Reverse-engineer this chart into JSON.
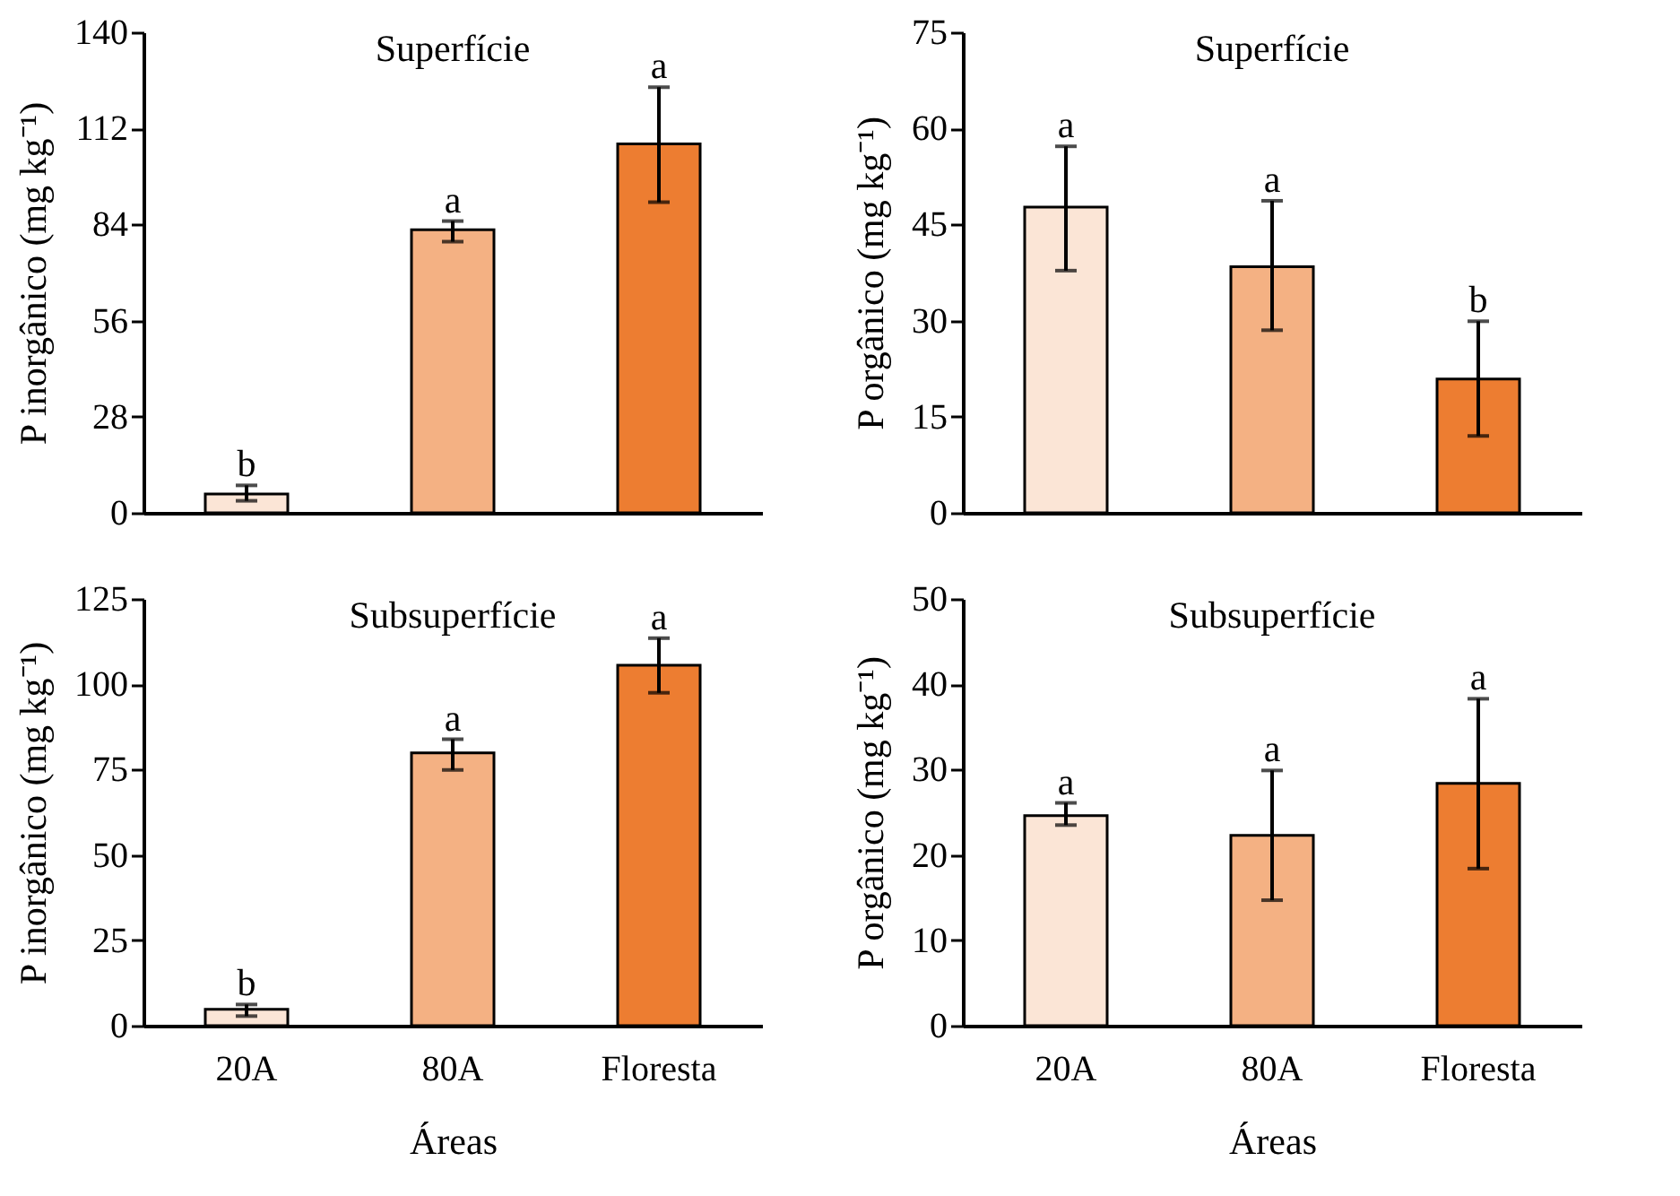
{
  "chart_data": [
    {
      "type": "bar",
      "title": "Superfície",
      "ylabel": "P inorgânico (mg kg⁻¹)",
      "categories": [
        "20A",
        "80A",
        "Floresta"
      ],
      "values": [
        5.5,
        82.5,
        107.5
      ],
      "errors": [
        [
          3.5,
          8
        ],
        [
          79,
          85
        ],
        [
          90.5,
          124
        ]
      ],
      "colors": [
        "#fbe5d6",
        "#f4b183",
        "#ed7d31"
      ],
      "ylim": [
        0,
        140
      ],
      "yticks": [
        0,
        28,
        56,
        84,
        112,
        140
      ],
      "tick_labels": "y",
      "annotations": [
        {
          "text": "b",
          "x": "20A",
          "y": 8
        },
        {
          "text": "a",
          "x": "80A",
          "y": 85
        },
        {
          "text": "a",
          "x": "Floresta",
          "y": 124
        }
      ]
    },
    {
      "type": "bar",
      "title": "Superfície",
      "ylabel": "P orgânico (mg kg⁻¹)",
      "categories": [
        "20A",
        "80A",
        "Floresta"
      ],
      "values": [
        47.7,
        38.4,
        20.9
      ],
      "errors": [
        [
          37.8,
          57.2
        ],
        [
          28.5,
          48.7
        ],
        [
          12,
          29.9
        ]
      ],
      "colors": [
        "#fbe5d6",
        "#f4b183",
        "#ed7d31"
      ],
      "ylim": [
        0,
        75
      ],
      "yticks": [
        0,
        15,
        30,
        45,
        60,
        75
      ],
      "tick_labels": "y",
      "annotations": [
        {
          "text": "a",
          "x": "20A",
          "y": 57.2
        },
        {
          "text": "a",
          "x": "80A",
          "y": 48.7
        },
        {
          "text": "b",
          "x": "Floresta",
          "y": 29.9
        }
      ]
    },
    {
      "type": "bar",
      "title": "Subsuperfície",
      "xlabel": "Áreas",
      "ylabel": "P inorgânico (mg kg⁻¹)",
      "categories": [
        "20A",
        "80A",
        "Floresta"
      ],
      "values": [
        4.8,
        79.9,
        105.6
      ],
      "errors": [
        [
          2.8,
          6.2
        ],
        [
          74.9,
          83.9
        ],
        [
          97.5,
          113.5
        ]
      ],
      "colors": [
        "#fbe5d6",
        "#f4b183",
        "#ed7d31"
      ],
      "ylim": [
        0,
        125
      ],
      "yticks": [
        0,
        25,
        50,
        75,
        100,
        125
      ],
      "annotations": [
        {
          "text": "b",
          "x": "20A",
          "y": 6.2
        },
        {
          "text": "a",
          "x": "80A",
          "y": 83.9
        },
        {
          "text": "a",
          "x": "Floresta",
          "y": 113.5
        }
      ]
    },
    {
      "type": "bar",
      "title": "Subsuperfície",
      "xlabel": "Áreas",
      "ylabel": "P orgânico (mg kg⁻¹)",
      "categories": [
        "20A",
        "80A",
        "Floresta"
      ],
      "values": [
        24.6,
        22.3,
        28.4
      ],
      "errors": [
        [
          23.5,
          26.1
        ],
        [
          14.7,
          29.9
        ],
        [
          18.4,
          38.3
        ]
      ],
      "colors": [
        "#fbe5d6",
        "#f4b183",
        "#ed7d31"
      ],
      "ylim": [
        0,
        50
      ],
      "yticks": [
        0,
        10,
        20,
        30,
        40,
        50
      ],
      "annotations": [
        {
          "text": "a",
          "x": "20A",
          "y": 26.1
        },
        {
          "text": "a",
          "x": "80A",
          "y": 29.9
        },
        {
          "text": "a",
          "x": "Floresta",
          "y": 38.3
        }
      ]
    }
  ]
}
